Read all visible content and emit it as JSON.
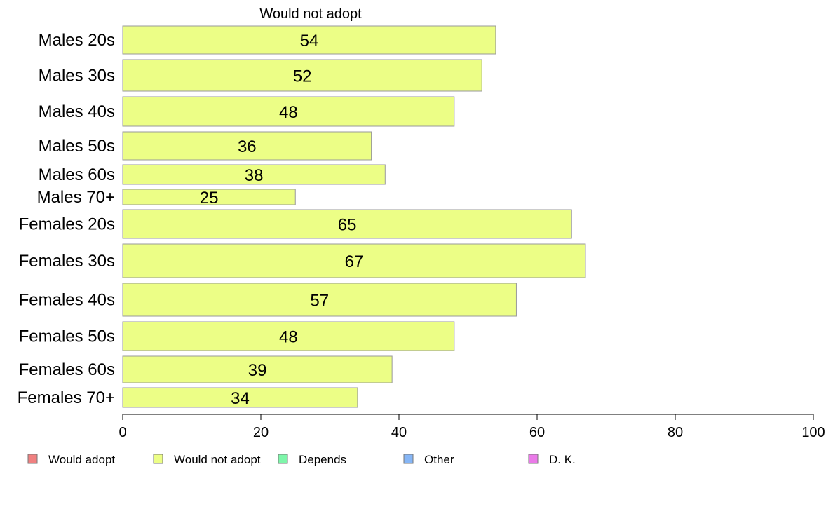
{
  "chart_data": {
    "type": "bar",
    "orientation": "horizontal",
    "title": "Would not adopt",
    "categories": [
      "Males 20s",
      "Males 30s",
      "Males 40s",
      "Males 50s",
      "Males 60s",
      "Males 70+",
      "Females 20s",
      "Females 30s",
      "Females 40s",
      "Females 50s",
      "Females 60s",
      "Females 70+"
    ],
    "values": [
      54,
      52,
      48,
      36,
      38,
      25,
      65,
      67,
      57,
      48,
      39,
      34
    ],
    "value_labels": [
      "54",
      "52",
      "48",
      "36",
      "38",
      "25",
      "65",
      "67",
      "57",
      "48",
      "39",
      "34"
    ],
    "xlim": [
      0,
      100
    ],
    "xticks": [
      "0",
      "20",
      "40",
      "60",
      "80",
      "100"
    ],
    "grid": false,
    "legend_position": "bottom",
    "legend": [
      {
        "label": "Would adopt",
        "color": "#f08080"
      },
      {
        "label": "Would not adopt",
        "color": "#ecfe86"
      },
      {
        "label": "Depends",
        "color": "#7ef6aa"
      },
      {
        "label": "Other",
        "color": "#86b6f6"
      },
      {
        "label": "D. K.",
        "color": "#ea7ae8"
      }
    ],
    "bar_color": "#ecfe86"
  }
}
